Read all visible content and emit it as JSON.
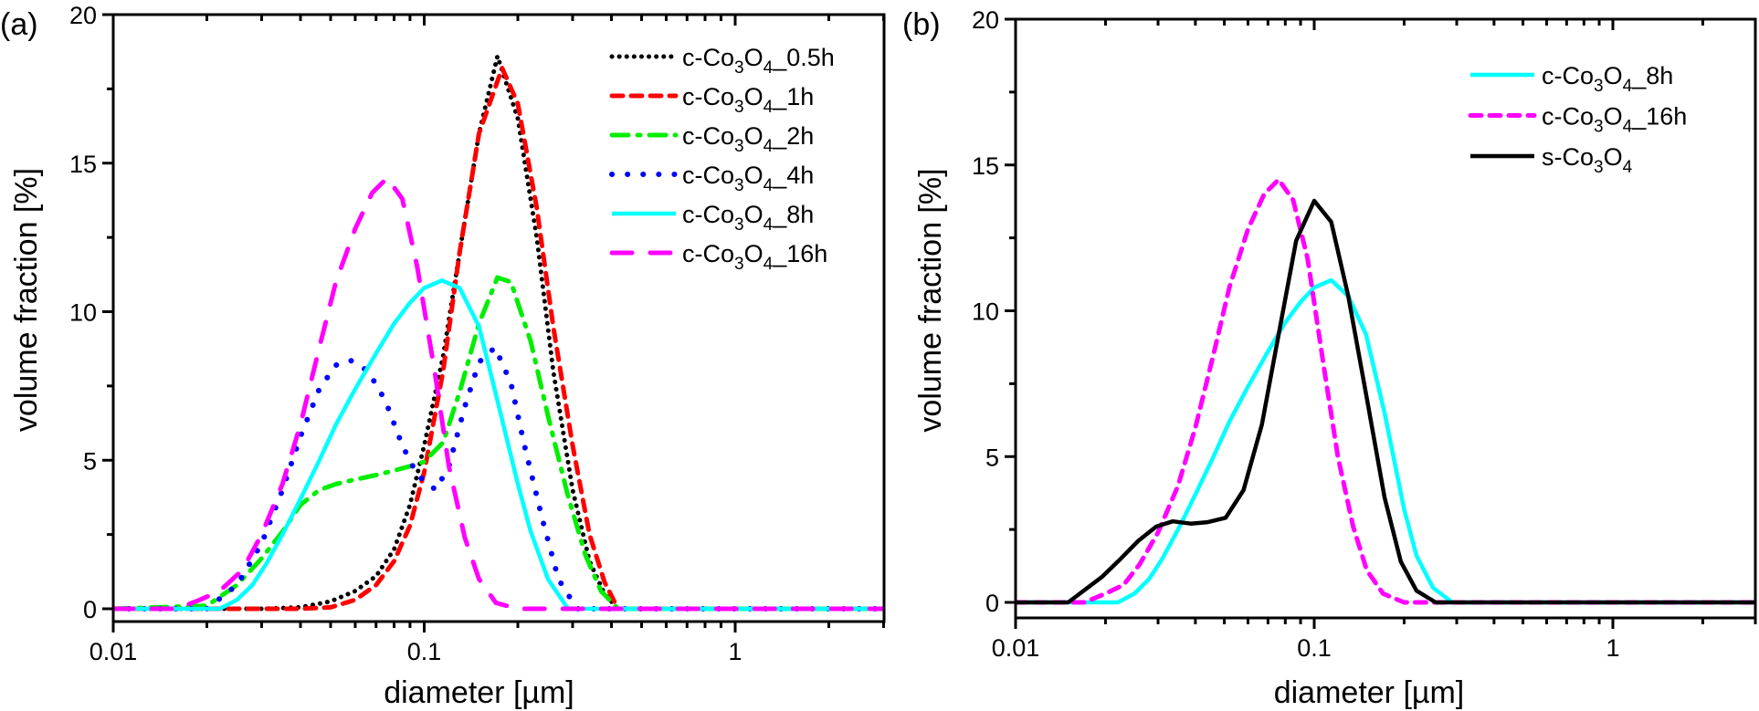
{
  "chart_data": [
    {
      "type": "line",
      "panel_label": "(a)",
      "title": "",
      "xlabel": "diameter [µm]",
      "ylabel": "volume fraction [%]",
      "xscale": "log",
      "xlim": [
        0.01,
        3
      ],
      "ylim": [
        -0.5,
        20
      ],
      "xticks": [
        0.01,
        0.1,
        1
      ],
      "xtick_labels": [
        "0.01",
        "0.1",
        "1"
      ],
      "yticks": [
        0,
        5,
        10,
        15,
        20
      ],
      "ytick_labels": [
        "0",
        "5",
        "10",
        "15",
        "20"
      ],
      "grid": false,
      "legend_position": "top-right",
      "series": [
        {
          "name": "c-Co3O4_0.5h",
          "label_parts": [
            "c-Co",
            "3",
            "O",
            "4",
            "_0.5h"
          ],
          "color": "#000000",
          "style": "dotted",
          "x": [
            0.01,
            0.03,
            0.04,
            0.05,
            0.06,
            0.07,
            0.08,
            0.09,
            0.1,
            0.115,
            0.13,
            0.15,
            0.172,
            0.2,
            0.23,
            0.26,
            0.3,
            0.34,
            0.38,
            0.42,
            3
          ],
          "y": [
            0,
            0,
            0.05,
            0.25,
            0.6,
            1.1,
            2.0,
            3.5,
            5.5,
            8.5,
            12.0,
            16.0,
            18.6,
            16.5,
            12.5,
            8.0,
            4.0,
            1.6,
            0.5,
            0,
            0
          ]
        },
        {
          "name": "c-Co3O4_1h",
          "label_parts": [
            "c-Co",
            "3",
            "O",
            "4",
            "_1h"
          ],
          "color": "#ff0000",
          "style": "dashed",
          "x": [
            0.01,
            0.04,
            0.05,
            0.06,
            0.07,
            0.08,
            0.09,
            0.1,
            0.115,
            0.13,
            0.15,
            0.178,
            0.2,
            0.23,
            0.26,
            0.3,
            0.34,
            0.38,
            0.42,
            3
          ],
          "y": [
            0,
            0,
            0.05,
            0.3,
            0.8,
            1.6,
            2.8,
            4.6,
            8.0,
            12.0,
            16.0,
            18.2,
            17.0,
            13.5,
            9.5,
            5.5,
            2.5,
            0.9,
            0,
            0
          ]
        },
        {
          "name": "c-Co3O4_2h",
          "label_parts": [
            "c-Co",
            "3",
            "O",
            "4",
            "_2h"
          ],
          "color": "#00ee00",
          "style": "dash-dot",
          "x": [
            0.01,
            0.02,
            0.025,
            0.03,
            0.035,
            0.04,
            0.046,
            0.052,
            0.06,
            0.07,
            0.08,
            0.09,
            0.1,
            0.115,
            0.13,
            0.15,
            0.172,
            0.19,
            0.22,
            0.25,
            0.29,
            0.33,
            0.37,
            0.42,
            3
          ],
          "y": [
            0,
            0.1,
            0.8,
            1.7,
            2.6,
            3.5,
            4.0,
            4.2,
            4.35,
            4.5,
            4.65,
            4.8,
            4.95,
            5.6,
            7.3,
            9.6,
            11.15,
            11.0,
            9.0,
            6.5,
            3.8,
            1.8,
            0.6,
            0,
            0
          ]
        },
        {
          "name": "c-Co3O4_4h",
          "label_parts": [
            "c-Co",
            "3",
            "O",
            "4",
            "_4h"
          ],
          "color": "#0000ff",
          "style": "dotted-sparse",
          "x": [
            0.01,
            0.02,
            0.025,
            0.03,
            0.035,
            0.04,
            0.046,
            0.052,
            0.058,
            0.066,
            0.075,
            0.085,
            0.095,
            0.109,
            0.12,
            0.135,
            0.15,
            0.169,
            0.19,
            0.21,
            0.24,
            0.27,
            0.31,
            3
          ],
          "y": [
            0,
            0,
            0.8,
            2.2,
            4.0,
            5.8,
            7.4,
            8.2,
            8.36,
            8.0,
            7.0,
            5.5,
            4.5,
            4.0,
            4.8,
            6.8,
            8.3,
            8.8,
            7.6,
            5.5,
            3.0,
            1.0,
            0,
            0
          ]
        },
        {
          "name": "c-Co3O4_8h",
          "label_parts": [
            "c-Co",
            "3",
            "O",
            "4",
            "_8h"
          ],
          "color": "#00ffff",
          "style": "solid",
          "x": [
            0.01,
            0.022,
            0.025,
            0.028,
            0.031,
            0.035,
            0.04,
            0.046,
            0.052,
            0.06,
            0.07,
            0.08,
            0.09,
            0.1,
            0.114,
            0.13,
            0.15,
            0.172,
            0.2,
            0.22,
            0.25,
            0.29,
            3
          ],
          "y": [
            0,
            0,
            0.3,
            0.8,
            1.5,
            2.5,
            3.7,
            5.0,
            6.2,
            7.4,
            8.6,
            9.6,
            10.3,
            10.8,
            11.05,
            10.8,
            9.5,
            7.0,
            4.2,
            2.6,
            1.0,
            0,
            0
          ]
        },
        {
          "name": "c-Co3O4_16h",
          "label_parts": [
            "c-Co",
            "3",
            "O",
            "4",
            "_16h"
          ],
          "color": "#ff00ff",
          "style": "long-dash",
          "x": [
            0.01,
            0.016,
            0.019,
            0.022,
            0.026,
            0.03,
            0.035,
            0.04,
            0.046,
            0.052,
            0.06,
            0.068,
            0.076,
            0.085,
            0.095,
            0.108,
            0.12,
            0.135,
            0.15,
            0.17,
            0.2,
            3
          ],
          "y": [
            0,
            0,
            0.3,
            0.6,
            1.3,
            2.5,
            4.2,
            6.2,
            8.8,
            11.0,
            12.8,
            14.0,
            14.5,
            13.8,
            11.5,
            8.0,
            4.8,
            2.4,
            1.0,
            0.2,
            0,
            0
          ]
        }
      ]
    },
    {
      "type": "line",
      "panel_label": "(b)",
      "title": "",
      "xlabel": "diameter [µm]",
      "ylabel": "volume fraction [%]",
      "xscale": "log",
      "xlim": [
        0.01,
        3
      ],
      "ylim": [
        -0.5,
        20
      ],
      "xticks": [
        0.01,
        0.1,
        1
      ],
      "xtick_labels": [
        "0.01",
        "0.1",
        "1"
      ],
      "yticks": [
        0,
        5,
        10,
        15,
        20
      ],
      "ytick_labels": [
        "0",
        "5",
        "10",
        "15",
        "20"
      ],
      "grid": false,
      "legend_position": "top-right",
      "series": [
        {
          "name": "c-Co3O4_8h",
          "label_parts": [
            "c-Co",
            "3",
            "O",
            "4",
            "_8h"
          ],
          "color": "#00ffff",
          "style": "solid",
          "x": [
            0.01,
            0.022,
            0.025,
            0.028,
            0.031,
            0.035,
            0.04,
            0.046,
            0.052,
            0.06,
            0.07,
            0.08,
            0.09,
            0.1,
            0.114,
            0.13,
            0.149,
            0.172,
            0.2,
            0.22,
            0.25,
            0.29,
            3
          ],
          "y": [
            0,
            0,
            0.3,
            0.8,
            1.5,
            2.5,
            3.7,
            5.0,
            6.2,
            7.4,
            8.6,
            9.6,
            10.3,
            10.8,
            11.05,
            10.5,
            9.2,
            6.5,
            3.2,
            1.6,
            0.5,
            0,
            0
          ]
        },
        {
          "name": "c-Co3O4_16h",
          "label_parts": [
            "c-Co",
            "3",
            "O",
            "4",
            "_16h"
          ],
          "color": "#ff00ff",
          "style": "dashed",
          "x": [
            0.01,
            0.017,
            0.02,
            0.023,
            0.026,
            0.03,
            0.035,
            0.04,
            0.046,
            0.052,
            0.06,
            0.068,
            0.076,
            0.085,
            0.095,
            0.108,
            0.12,
            0.135,
            0.15,
            0.17,
            0.2,
            0.23,
            3
          ],
          "y": [
            0,
            0,
            0.3,
            0.6,
            1.3,
            2.4,
            4.0,
            6.0,
            8.5,
            10.8,
            12.8,
            14.0,
            14.5,
            13.8,
            11.8,
            8.0,
            5.0,
            2.6,
            1.1,
            0.3,
            0,
            0,
            0
          ]
        },
        {
          "name": "s-Co3O4",
          "label_parts": [
            "s-Co",
            "3",
            "O",
            "4",
            ""
          ],
          "color": "#000000",
          "style": "solid",
          "x": [
            0.01,
            0.015,
            0.0195,
            0.0225,
            0.0257,
            0.0296,
            0.0336,
            0.0386,
            0.044,
            0.0505,
            0.058,
            0.0668,
            0.077,
            0.087,
            0.1,
            0.114,
            0.13,
            0.15,
            0.172,
            0.195,
            0.22,
            0.255,
            3
          ],
          "y": [
            0,
            0,
            0.88,
            1.5,
            2.1,
            2.6,
            2.78,
            2.7,
            2.75,
            2.9,
            3.85,
            6.1,
            9.5,
            12.4,
            13.77,
            13.05,
            10.5,
            7.0,
            3.6,
            1.4,
            0.4,
            0,
            0
          ]
        }
      ]
    }
  ]
}
